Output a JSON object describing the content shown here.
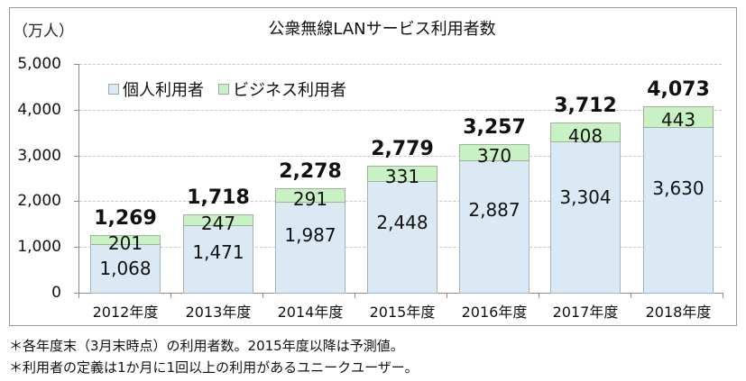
{
  "chart_data": {
    "type": "bar",
    "stacked": true,
    "title": "公衆無線LANサービス利用者数",
    "ylabel": "（万人）",
    "xlabel": "",
    "ylim": [
      0,
      5000
    ],
    "yticks": [
      "5,000",
      "4,000",
      "3,000",
      "2,000",
      "1,000",
      "0"
    ],
    "grid": true,
    "legend_position": "top-left inside",
    "categories": [
      "2012年度",
      "2013年度",
      "2014年度",
      "2015年度",
      "2016年度",
      "2017年度",
      "2018年度"
    ],
    "series": [
      {
        "name": "個人利用者",
        "color": "#dae9f3",
        "values": [
          1068,
          1471,
          1987,
          2448,
          2887,
          3304,
          3630
        ],
        "labels": [
          "1,068",
          "1,471",
          "1,987",
          "2,448",
          "2,887",
          "3,304",
          "3,630"
        ]
      },
      {
        "name": "ビジネス利用者",
        "color": "#c9f2c4",
        "values": [
          201,
          247,
          291,
          331,
          370,
          408,
          443
        ],
        "labels": [
          "201",
          "247",
          "291",
          "331",
          "370",
          "408",
          "443"
        ]
      }
    ],
    "totals": [
      1269,
      1718,
      2278,
      2779,
      3257,
      3712,
      4073
    ],
    "total_labels": [
      "1,269",
      "1,718",
      "2,278",
      "2,779",
      "3,257",
      "3,712",
      "4,073"
    ]
  },
  "notes": [
    "＊各年度末（3月末時点）の利用者数。2015年度以降は予測値。",
    "＊利用者の定義は1か月に1回以上の利用があるユニークユーザー。"
  ]
}
